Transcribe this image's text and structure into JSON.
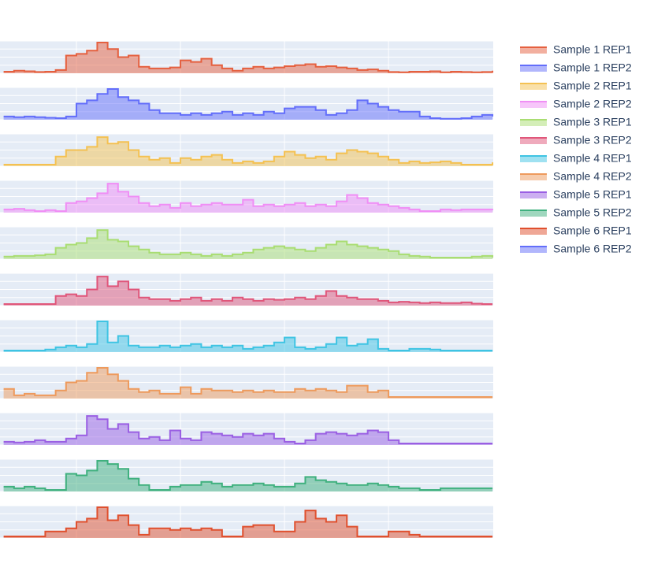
{
  "chart_data": {
    "type": "area",
    "line_shape": "hv",
    "x": [
      3,
      4,
      5,
      6,
      7,
      8,
      9,
      10,
      11,
      12,
      13,
      14,
      15,
      16,
      17,
      18,
      19,
      20,
      21,
      22,
      23,
      24,
      25,
      26,
      27,
      28,
      29,
      30,
      31,
      32,
      33,
      34,
      35,
      36,
      37,
      38,
      39,
      40,
      41,
      42,
      43,
      44,
      45,
      46,
      47,
      48,
      49,
      50
    ],
    "xlim": [
      2.65,
      50.07
    ],
    "xticks": [
      10,
      20,
      30,
      40
    ],
    "ylim": [
      0,
      100
    ],
    "yticks": [
      0,
      25,
      50,
      75,
      100
    ],
    "grid": true,
    "legend": "right",
    "series": [
      {
        "name": "Sample 1 REP1",
        "color": "#e5603f",
        "values": [
          5,
          8,
          6,
          4,
          5,
          10,
          55,
          60,
          70,
          95,
          75,
          50,
          55,
          20,
          15,
          15,
          18,
          40,
          35,
          45,
          25,
          15,
          8,
          15,
          20,
          15,
          18,
          22,
          25,
          28,
          20,
          22,
          18,
          15,
          10,
          12,
          8,
          4,
          3,
          5,
          5,
          6,
          3,
          5,
          4,
          3,
          4,
          8
        ]
      },
      {
        "name": "Sample 1 REP2",
        "color": "#636efa",
        "values": [
          10,
          8,
          10,
          8,
          6,
          5,
          10,
          50,
          60,
          80,
          95,
          70,
          60,
          50,
          30,
          20,
          20,
          15,
          20,
          15,
          20,
          25,
          15,
          20,
          15,
          25,
          20,
          35,
          40,
          40,
          30,
          15,
          20,
          30,
          60,
          50,
          40,
          30,
          25,
          25,
          10,
          5,
          3,
          3,
          5,
          10,
          15,
          10
        ]
      },
      {
        "name": "Sample 2 REP1",
        "color": "#f4c152",
        "values": [
          5,
          5,
          5,
          5,
          5,
          30,
          50,
          50,
          60,
          90,
          70,
          75,
          50,
          30,
          20,
          25,
          10,
          25,
          20,
          30,
          35,
          20,
          10,
          15,
          10,
          15,
          30,
          45,
          35,
          25,
          30,
          20,
          40,
          50,
          45,
          40,
          30,
          20,
          10,
          15,
          10,
          12,
          15,
          10,
          5,
          5,
          5,
          12
        ]
      },
      {
        "name": "Sample 2 REP2",
        "color": "#f08ef5",
        "values": [
          10,
          12,
          8,
          5,
          8,
          5,
          30,
          35,
          45,
          60,
          90,
          65,
          50,
          30,
          20,
          25,
          15,
          30,
          20,
          25,
          30,
          25,
          25,
          40,
          20,
          25,
          20,
          25,
          30,
          20,
          25,
          20,
          35,
          55,
          45,
          30,
          25,
          20,
          15,
          10,
          5,
          5,
          10,
          8,
          10,
          10,
          10,
          12
        ]
      },
      {
        "name": "Sample 3 REP1",
        "color": "#a9dd72",
        "values": [
          8,
          10,
          10,
          12,
          15,
          35,
          45,
          50,
          65,
          90,
          60,
          55,
          40,
          30,
          20,
          15,
          15,
          20,
          15,
          10,
          15,
          10,
          15,
          20,
          30,
          35,
          40,
          35,
          30,
          25,
          35,
          45,
          55,
          45,
          40,
          35,
          30,
          25,
          15,
          10,
          8,
          5,
          5,
          5,
          5,
          8,
          10,
          5
        ]
      },
      {
        "name": "Sample 3 REP2",
        "color": "#e0567a",
        "values": [
          5,
          5,
          5,
          5,
          5,
          30,
          35,
          30,
          50,
          90,
          60,
          75,
          50,
          25,
          20,
          20,
          15,
          20,
          25,
          15,
          20,
          15,
          25,
          20,
          15,
          20,
          18,
          20,
          25,
          20,
          30,
          45,
          30,
          25,
          20,
          20,
          15,
          10,
          12,
          10,
          8,
          10,
          8,
          8,
          10,
          6,
          5,
          5
        ]
      },
      {
        "name": "Sample 4 REP1",
        "color": "#3fc4e3",
        "values": [
          5,
          5,
          5,
          5,
          8,
          15,
          20,
          15,
          25,
          95,
          30,
          50,
          20,
          15,
          15,
          20,
          15,
          20,
          25,
          15,
          20,
          15,
          20,
          10,
          15,
          20,
          30,
          45,
          15,
          10,
          15,
          25,
          45,
          20,
          25,
          40,
          10,
          5,
          5,
          10,
          10,
          8,
          5,
          5,
          5,
          5,
          5,
          5
        ]
      },
      {
        "name": "Sample 4 REP2",
        "color": "#ee9a5c",
        "values": [
          30,
          10,
          15,
          10,
          10,
          25,
          50,
          55,
          80,
          95,
          75,
          55,
          30,
          20,
          25,
          15,
          15,
          35,
          15,
          30,
          25,
          25,
          20,
          25,
          20,
          25,
          20,
          20,
          30,
          25,
          30,
          25,
          20,
          40,
          40,
          20,
          25,
          5,
          5,
          5,
          5,
          5,
          5,
          5,
          5,
          5,
          5,
          5
        ]
      },
      {
        "name": "Sample 5 REP1",
        "color": "#9a5fe3",
        "values": [
          10,
          8,
          10,
          15,
          10,
          10,
          20,
          30,
          90,
          80,
          50,
          65,
          40,
          20,
          25,
          15,
          45,
          20,
          15,
          40,
          35,
          30,
          25,
          35,
          30,
          35,
          20,
          10,
          5,
          15,
          35,
          40,
          35,
          30,
          35,
          45,
          40,
          15,
          5,
          5,
          5,
          5,
          5,
          5,
          5,
          5,
          5,
          5
        ]
      },
      {
        "name": "Sample 5 REP2",
        "color": "#3fb07e",
        "values": [
          15,
          10,
          15,
          10,
          5,
          5,
          55,
          50,
          65,
          95,
          85,
          70,
          40,
          20,
          5,
          5,
          15,
          20,
          20,
          30,
          25,
          15,
          20,
          20,
          25,
          20,
          15,
          15,
          25,
          45,
          35,
          30,
          25,
          20,
          20,
          25,
          20,
          15,
          10,
          10,
          5,
          5,
          10,
          10,
          10,
          10,
          10,
          10
        ]
      },
      {
        "name": "Sample 6 REP1",
        "color": "#e0502e",
        "values": [
          5,
          5,
          5,
          5,
          20,
          20,
          30,
          50,
          60,
          95,
          55,
          70,
          40,
          10,
          30,
          30,
          25,
          30,
          25,
          30,
          25,
          5,
          5,
          35,
          40,
          40,
          20,
          20,
          50,
          85,
          60,
          50,
          70,
          35,
          5,
          5,
          5,
          20,
          20,
          10,
          5,
          5,
          5,
          5,
          5,
          5,
          5,
          5
        ]
      },
      {
        "name": "Sample 6 REP2",
        "color": "#636efa"
      }
    ]
  }
}
